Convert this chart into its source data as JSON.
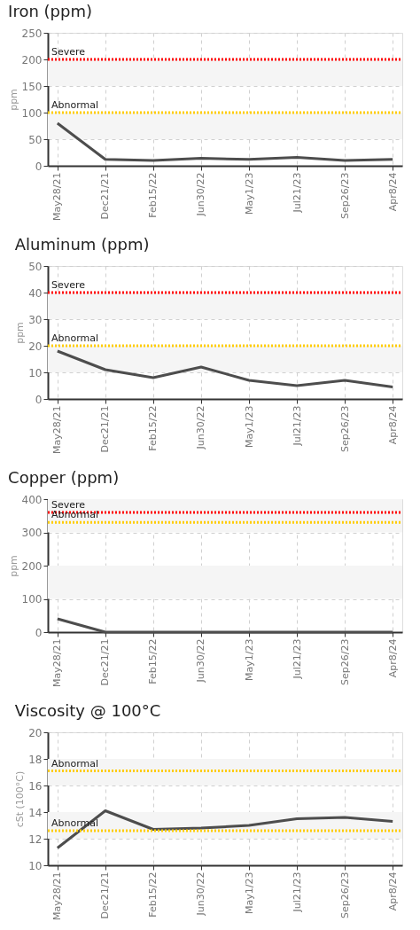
{
  "chart_data": [
    {
      "type": "line",
      "title": "Iron (ppm)",
      "ylabel": "ppm",
      "categories": [
        "May28/21",
        "Dec21/21",
        "Feb15/22",
        "Jun30/22",
        "May1/23",
        "Jul21/23",
        "Sep26/23",
        "Apr8/24"
      ],
      "series": [
        {
          "color": "#4d4d4d",
          "values": [
            80,
            12,
            10,
            14,
            12,
            16,
            10,
            12
          ]
        }
      ],
      "ylim": [
        0,
        250
      ],
      "yticks": [
        0,
        50,
        100,
        150,
        200,
        250
      ],
      "grid": true,
      "line_style": "solid",
      "ref_lines": [
        {
          "axis": "y",
          "value": 200,
          "label": "Severe",
          "color": "#ff0000",
          "line_style": "dotted"
        },
        {
          "axis": "y",
          "value": 100,
          "label": "Abnormal",
          "color": "#ffcc00",
          "line_style": "dotted"
        }
      ],
      "bands": [
        {
          "axis": "y",
          "from": 50,
          "to": 100,
          "color": "#f5f5f5"
        },
        {
          "axis": "y",
          "from": 150,
          "to": 200,
          "color": "#f5f5f5"
        }
      ]
    },
    {
      "type": "line",
      "title": "Aluminum (ppm)",
      "ylabel": "ppm",
      "categories": [
        "May28/21",
        "Dec21/21",
        "Feb15/22",
        "Jun30/22",
        "May1/23",
        "Jul21/23",
        "Sep26/23",
        "Apr8/24"
      ],
      "series": [
        {
          "color": "#4d4d4d",
          "values": [
            18,
            11,
            8,
            12,
            7,
            5,
            7,
            4.5
          ]
        }
      ],
      "ylim": [
        0,
        50
      ],
      "yticks": [
        0,
        10,
        20,
        30,
        40,
        50
      ],
      "grid": true,
      "line_style": "solid",
      "ref_lines": [
        {
          "axis": "y",
          "value": 40,
          "label": "Severe",
          "color": "#ff0000",
          "line_style": "dotted"
        },
        {
          "axis": "y",
          "value": 20,
          "label": "Abnormal",
          "color": "#ffcc00",
          "line_style": "dotted"
        }
      ],
      "bands": [
        {
          "axis": "y",
          "from": 10,
          "to": 20,
          "color": "#f5f5f5"
        },
        {
          "axis": "y",
          "from": 30,
          "to": 40,
          "color": "#f5f5f5"
        }
      ]
    },
    {
      "type": "line",
      "title": "Copper (ppm)",
      "ylabel": "ppm",
      "categories": [
        "May28/21",
        "Dec21/21",
        "Feb15/22",
        "Jun30/22",
        "May1/23",
        "Jul21/23",
        "Sep26/23",
        "Apr8/24"
      ],
      "series": [
        {
          "color": "#4d4d4d",
          "values": [
            40,
            0,
            0,
            0,
            0,
            0,
            0,
            0
          ]
        }
      ],
      "ylim": [
        0,
        400
      ],
      "yticks": [
        0,
        100,
        200,
        300,
        400
      ],
      "grid": true,
      "line_style": "solid",
      "ref_lines": [
        {
          "axis": "y",
          "value": 360,
          "label": "Severe",
          "color": "#ff0000",
          "line_style": "dotted"
        },
        {
          "axis": "y",
          "value": 330,
          "label": "Abnormal",
          "color": "#ffcc00",
          "line_style": "dotted"
        }
      ],
      "bands": [
        {
          "axis": "y",
          "from": 100,
          "to": 200,
          "color": "#f5f5f5"
        },
        {
          "axis": "y",
          "from": 300,
          "to": 400,
          "color": "#f5f5f5"
        }
      ]
    },
    {
      "type": "line",
      "title": "Viscosity @ 100°C",
      "ylabel": "cSt (100°C)",
      "categories": [
        "May28/21",
        "Dec21/21",
        "Feb15/22",
        "Jun30/22",
        "May1/23",
        "Jul21/23",
        "Sep26/23",
        "Apr8/24"
      ],
      "series": [
        {
          "color": "#4d4d4d",
          "values": [
            11.3,
            14.1,
            12.7,
            12.8,
            13.0,
            13.5,
            13.6,
            13.3
          ]
        }
      ],
      "ylim": [
        10,
        20
      ],
      "yticks": [
        10,
        12,
        14,
        16,
        18,
        20
      ],
      "grid": true,
      "line_style": "solid",
      "ref_lines": [
        {
          "axis": "y",
          "value": 17.1,
          "label": "Abnormal",
          "color": "#ffcc00",
          "line_style": "dotted"
        },
        {
          "axis": "y",
          "value": 12.6,
          "label": "Abnormal",
          "color": "#ffcc00",
          "line_style": "dotted"
        }
      ],
      "bands": [
        {
          "axis": "y",
          "from": 12,
          "to": 14,
          "color": "#f5f5f5"
        },
        {
          "axis": "y",
          "from": 16,
          "to": 18,
          "color": "#f5f5f5"
        }
      ]
    }
  ]
}
